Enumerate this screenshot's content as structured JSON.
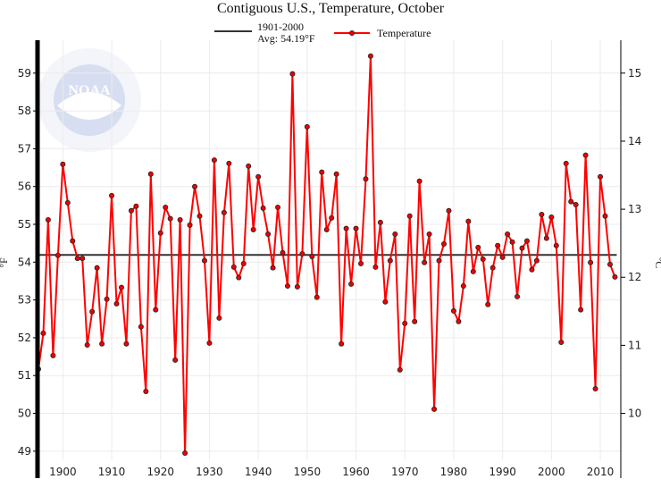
{
  "chart_data": {
    "type": "line",
    "title": "Contiguous U.S., Temperature, October",
    "ylabel": "°F",
    "ylabel_right": "°C",
    "xlim": [
      1895,
      2014.2
    ],
    "ylim": [
      48.76,
      59.87
    ],
    "grid": true,
    "legend_placement": "top",
    "x_ticks": [
      1900,
      1910,
      1920,
      1930,
      1940,
      1950,
      1960,
      1970,
      1980,
      1990,
      2000,
      2010
    ],
    "y_ticks": [
      49,
      50,
      51,
      52,
      53,
      54,
      55,
      56,
      57,
      58,
      59
    ],
    "y_ticks_right": [
      10,
      11,
      12,
      13,
      14,
      15
    ],
    "average": {
      "label_line1": "1901-2000",
      "label_line2": "Avg: 54.19°F",
      "value": 54.19,
      "color": "#333333"
    },
    "series": [
      {
        "name": "Temperature",
        "color": "#ff0000",
        "x": [
          1895,
          1896,
          1897,
          1898,
          1899,
          1900,
          1901,
          1902,
          1903,
          1904,
          1905,
          1906,
          1907,
          1908,
          1909,
          1910,
          1911,
          1912,
          1913,
          1914,
          1915,
          1916,
          1917,
          1918,
          1919,
          1920,
          1921,
          1922,
          1923,
          1924,
          1925,
          1926,
          1927,
          1928,
          1929,
          1930,
          1931,
          1932,
          1933,
          1934,
          1935,
          1936,
          1937,
          1938,
          1939,
          1940,
          1941,
          1942,
          1943,
          1944,
          1945,
          1946,
          1947,
          1948,
          1949,
          1950,
          1951,
          1952,
          1953,
          1954,
          1955,
          1956,
          1957,
          1958,
          1959,
          1960,
          1961,
          1962,
          1963,
          1964,
          1965,
          1966,
          1967,
          1968,
          1969,
          1970,
          1971,
          1972,
          1973,
          1974,
          1975,
          1976,
          1977,
          1978,
          1979,
          1980,
          1981,
          1982,
          1983,
          1984,
          1985,
          1986,
          1987,
          1988,
          1989,
          1990,
          1991,
          1992,
          1993,
          1994,
          1995,
          1996,
          1997,
          1998,
          1999,
          2000,
          2001,
          2002,
          2003,
          2004,
          2005,
          2006,
          2007,
          2008,
          2009,
          2010,
          2011,
          2012,
          2013
        ],
        "values": [
          51.17,
          52.12,
          55.12,
          51.53,
          54.18,
          56.59,
          55.57,
          54.56,
          54.1,
          54.1,
          51.81,
          52.69,
          53.85,
          51.84,
          53.02,
          55.76,
          52.9,
          53.33,
          51.84,
          55.36,
          55.48,
          52.29,
          50.58,
          56.33,
          52.74,
          54.77,
          55.45,
          55.15,
          51.41,
          55.12,
          48.95,
          54.98,
          56.0,
          55.22,
          54.04,
          51.86,
          56.7,
          52.52,
          55.31,
          56.61,
          53.87,
          53.59,
          53.96,
          56.54,
          54.86,
          56.26,
          55.43,
          54.74,
          53.85,
          55.45,
          54.25,
          53.37,
          58.98,
          53.35,
          54.22,
          57.58,
          54.15,
          53.07,
          56.38,
          54.86,
          55.17,
          56.33,
          51.84,
          54.89,
          53.42,
          54.89,
          53.96,
          56.2,
          59.45,
          53.87,
          55.05,
          52.95,
          54.04,
          54.74,
          51.15,
          52.38,
          55.22,
          52.43,
          56.14,
          53.99,
          54.74,
          50.11,
          54.04,
          54.48,
          55.36,
          52.71,
          52.43,
          53.37,
          55.08,
          53.75,
          54.39,
          54.08,
          52.88,
          53.85,
          54.44,
          54.13,
          54.74,
          54.53,
          53.09,
          54.37,
          54.56,
          53.8,
          54.04,
          55.26,
          54.63,
          55.19,
          54.44,
          51.88,
          56.61,
          55.6,
          55.52,
          52.74,
          56.83,
          53.99,
          50.65,
          56.26,
          55.22,
          53.94,
          53.61
        ]
      }
    ]
  },
  "watermark": {
    "text": "NOAA",
    "ring_text": "NATIONAL OCEANIC AND ATMOSPHERIC ADMINISTRATION · U.S. DEPARTMENT OF COMMERCE"
  }
}
